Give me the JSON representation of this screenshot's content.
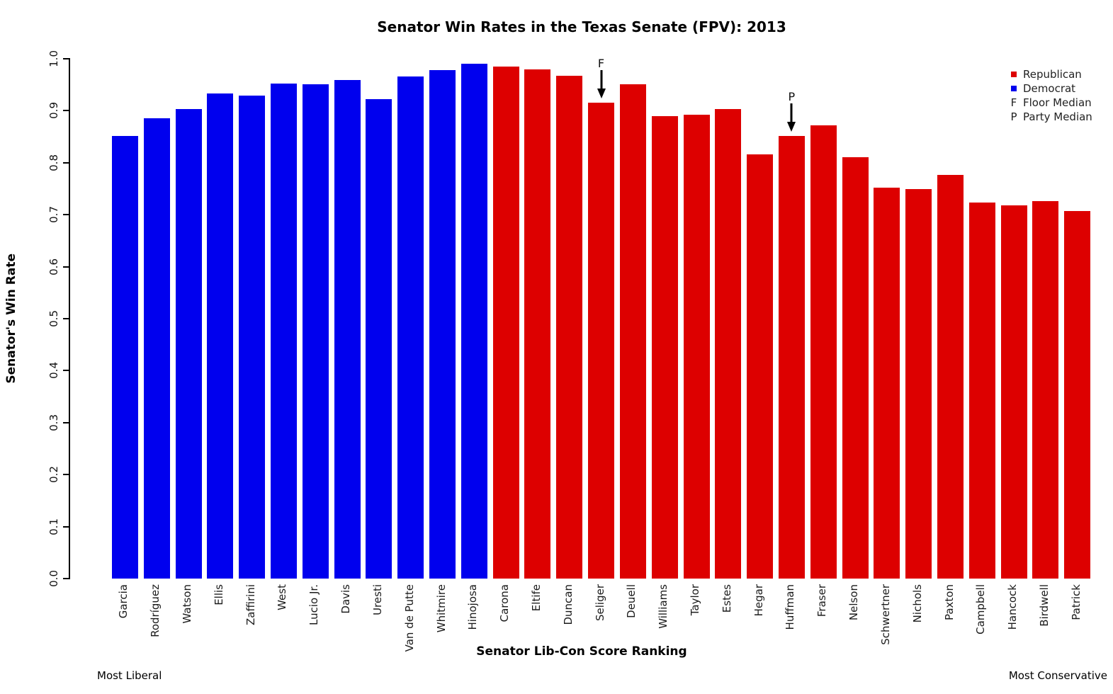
{
  "chart_data": {
    "type": "bar",
    "title": "Senator Win Rates in the Texas Senate (FPV): 2013",
    "xlabel": "Senator Lib-Con Score Ranking",
    "ylabel": "Senator's Win Rate",
    "x_note_left": "Most Liberal",
    "x_note_right": "Most Conservative",
    "ylim": [
      0.0,
      1.0
    ],
    "yticks": [
      "0.0",
      "0.1",
      "0.2",
      "0.3",
      "0.4",
      "0.5",
      "0.6",
      "0.7",
      "0.8",
      "0.9",
      "1.0"
    ],
    "grid": "off",
    "legend_position": "top-right",
    "colors": {
      "republican": "#DD0000",
      "democrat": "#0000EE"
    },
    "legend": {
      "items": [
        {
          "symbol": "square",
          "color": "#DD0000",
          "label": "Republican"
        },
        {
          "symbol": "square",
          "color": "#0000EE",
          "label": "Democrat"
        },
        {
          "symbol": "F",
          "label": "Floor Median"
        },
        {
          "symbol": "P",
          "label": "Party Median"
        }
      ]
    },
    "bars": [
      {
        "name": "Garcia",
        "party": "Democrat",
        "value": 0.851
      },
      {
        "name": "Rodríguez",
        "party": "Democrat",
        "value": 0.885
      },
      {
        "name": "Watson",
        "party": "Democrat",
        "value": 0.903
      },
      {
        "name": "Ellis",
        "party": "Democrat",
        "value": 0.933
      },
      {
        "name": "Zaffirini",
        "party": "Democrat",
        "value": 0.929
      },
      {
        "name": "West",
        "party": "Democrat",
        "value": 0.952
      },
      {
        "name": "Lucio Jr.",
        "party": "Democrat",
        "value": 0.951
      },
      {
        "name": "Davis",
        "party": "Democrat",
        "value": 0.959
      },
      {
        "name": "Uresti",
        "party": "Democrat",
        "value": 0.922
      },
      {
        "name": "Van de Putte",
        "party": "Democrat",
        "value": 0.966
      },
      {
        "name": "Whitmire",
        "party": "Democrat",
        "value": 0.978
      },
      {
        "name": "Hinojosa",
        "party": "Democrat",
        "value": 0.99
      },
      {
        "name": "Carona",
        "party": "Republican",
        "value": 0.985
      },
      {
        "name": "Eltife",
        "party": "Republican",
        "value": 0.979
      },
      {
        "name": "Duncan",
        "party": "Republican",
        "value": 0.967
      },
      {
        "name": "Seliger",
        "party": "Republican",
        "value": 0.916
      },
      {
        "name": "Deuell",
        "party": "Republican",
        "value": 0.951
      },
      {
        "name": "Williams",
        "party": "Republican",
        "value": 0.89
      },
      {
        "name": "Taylor",
        "party": "Republican",
        "value": 0.893
      },
      {
        "name": "Estes",
        "party": "Republican",
        "value": 0.903
      },
      {
        "name": "Hegar",
        "party": "Republican",
        "value": 0.816
      },
      {
        "name": "Huffman",
        "party": "Republican",
        "value": 0.851
      },
      {
        "name": "Fraser",
        "party": "Republican",
        "value": 0.872
      },
      {
        "name": "Nelson",
        "party": "Republican",
        "value": 0.81
      },
      {
        "name": "Schwertner",
        "party": "Republican",
        "value": 0.752
      },
      {
        "name": "Nichols",
        "party": "Republican",
        "value": 0.749
      },
      {
        "name": "Paxton",
        "party": "Republican",
        "value": 0.776
      },
      {
        "name": "Campbell",
        "party": "Republican",
        "value": 0.723
      },
      {
        "name": "Hancock",
        "party": "Republican",
        "value": 0.718
      },
      {
        "name": "Birdwell",
        "party": "Republican",
        "value": 0.726
      },
      {
        "name": "Patrick",
        "party": "Republican",
        "value": 0.707
      }
    ],
    "annotations": [
      {
        "symbol": "F",
        "meaning": "Floor Median",
        "target": "Seliger"
      },
      {
        "symbol": "P",
        "meaning": "Party Median",
        "target": "Huffman"
      }
    ]
  }
}
